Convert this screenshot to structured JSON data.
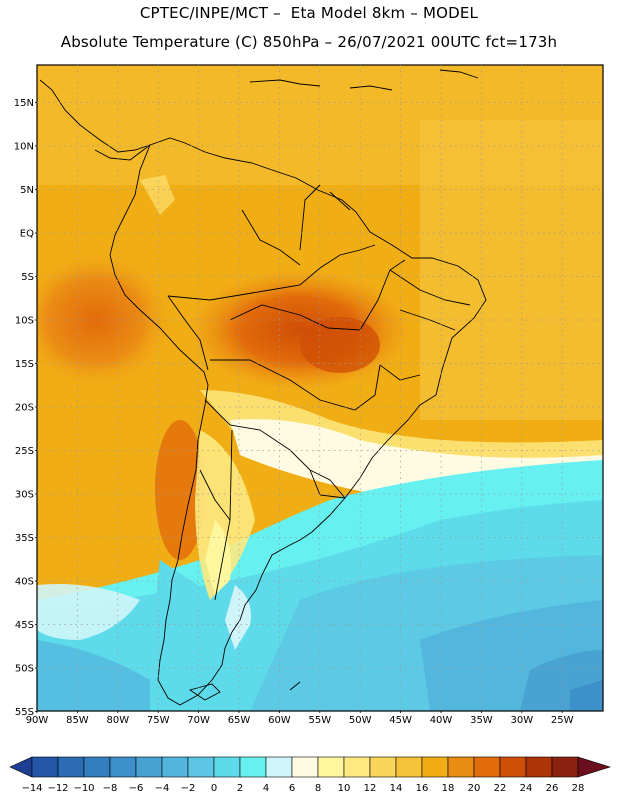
{
  "header": {
    "line1": "CPTEC/INPE/MCT –  Eta Model 8km – MODEL",
    "line2": "Absolute Temperature (C) 850hPa – 26/07/2021 00UTC fct=173h"
  },
  "lat_labels": [
    "15N",
    "10N",
    "5N",
    "EQ",
    "5S",
    "10S",
    "15S",
    "20S",
    "25S",
    "30S",
    "35S",
    "40S",
    "45S",
    "50S",
    "55S"
  ],
  "lon_labels": [
    "90W",
    "85W",
    "80W",
    "75W",
    "70W",
    "65W",
    "60W",
    "55W",
    "50W",
    "45W",
    "40W",
    "35W",
    "30W",
    "25W"
  ],
  "colorbar": {
    "labels": [
      "−14",
      "−12",
      "−10",
      "−8",
      "−6",
      "−4",
      "−2",
      "0",
      "2",
      "4",
      "6",
      "8",
      "10",
      "12",
      "14",
      "16",
      "18",
      "20",
      "22",
      "24",
      "26",
      "28"
    ],
    "colors": [
      "#1c3f94",
      "#2457a8",
      "#2b6cb4",
      "#327ebf",
      "#3d90c9",
      "#48a3d2",
      "#52b5dc",
      "#5cc6e4",
      "#5edbea",
      "#66f0f0",
      "#cff5fa",
      "#fffbe2",
      "#fff79e",
      "#fde980",
      "#f9d45a",
      "#f5c33a",
      "#f1ad14",
      "#eb8c14",
      "#e26b0a",
      "#cf4e06",
      "#ad3406",
      "#8b2210",
      "#6b0f1c"
    ]
  },
  "map": {
    "projection": "lat-lon",
    "lon_range": [
      -90,
      -20
    ],
    "lat_range": [
      -55,
      19
    ],
    "colors": {
      "ocean_warm": "#f1ad14",
      "ocean_cold": "#5edbea",
      "border": "#000000",
      "grid": "#9a9a9a"
    }
  }
}
